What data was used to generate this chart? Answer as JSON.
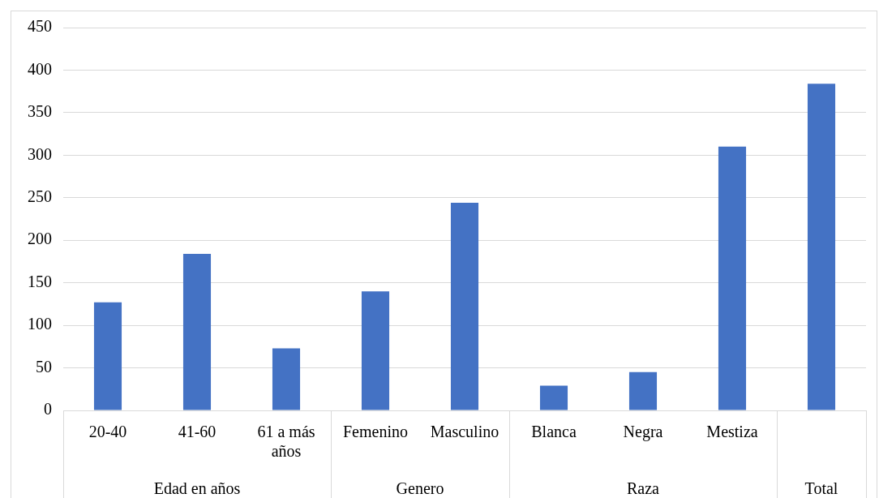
{
  "chart_data": {
    "type": "bar",
    "categories": [
      "20-40",
      "41-60",
      "61 a más años",
      "Femenino",
      "Masculino",
      "Blanca",
      "Negra",
      "Mestiza",
      null
    ],
    "values": [
      127,
      184,
      73,
      140,
      244,
      29,
      45,
      310,
      384
    ],
    "color": "#4472c4",
    "ylim": [
      0,
      450
    ],
    "yticks": [
      0,
      50,
      100,
      150,
      200,
      250,
      300,
      350,
      400,
      450
    ],
    "grid": "y",
    "annotations": [
      "Edad en años",
      "Genero",
      "Raza",
      "Total"
    ]
  }
}
